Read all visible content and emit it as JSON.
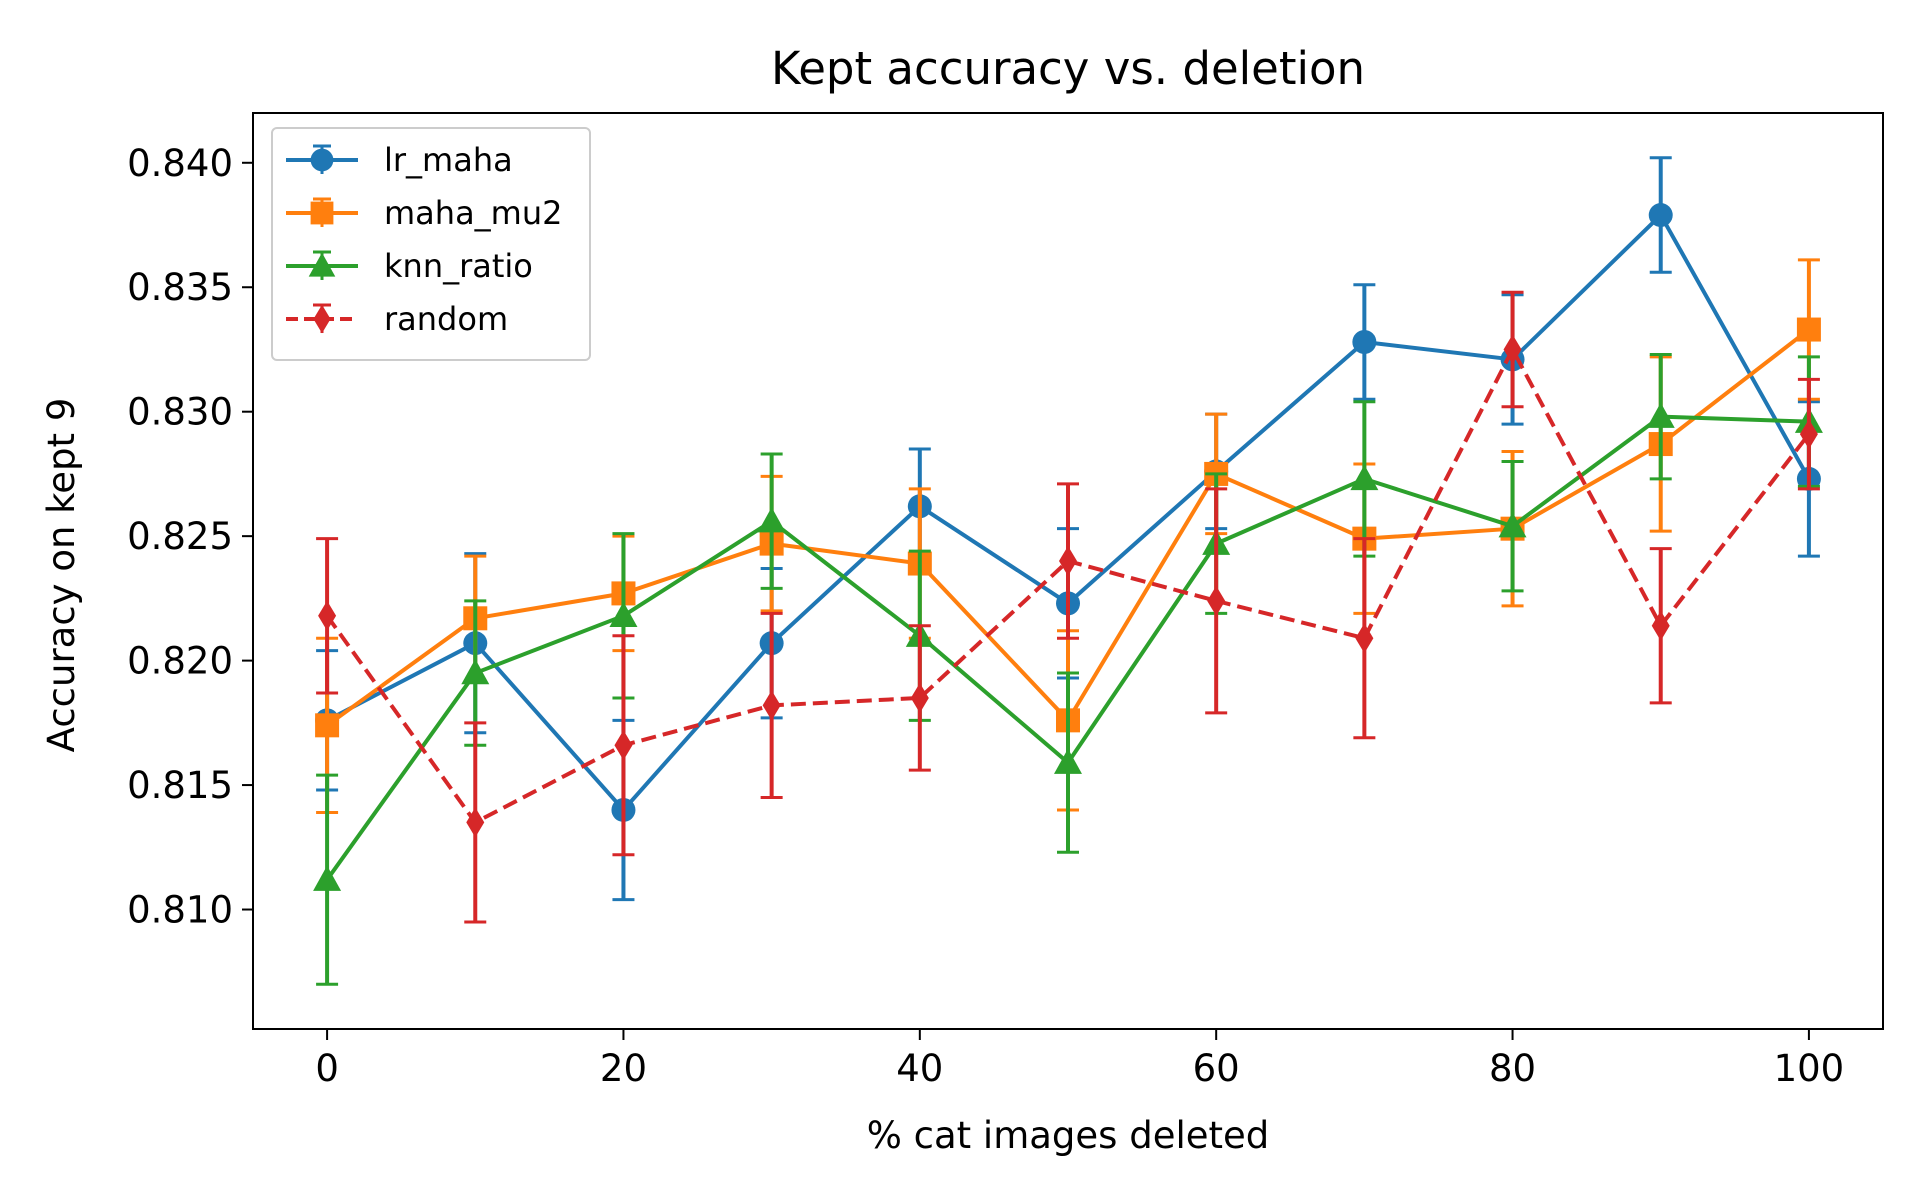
{
  "chart_data": {
    "type": "line",
    "title": "Kept accuracy vs. deletion",
    "xlabel": "% cat images deleted",
    "ylabel": "Accuracy on kept 9",
    "x": [
      0,
      10,
      20,
      30,
      40,
      50,
      60,
      70,
      80,
      90,
      100
    ],
    "xlim": [
      -5,
      105
    ],
    "ylim": [
      0.8052,
      0.842
    ],
    "xticks": [
      0,
      20,
      40,
      60,
      80,
      100
    ],
    "xtick_labels": [
      "0",
      "20",
      "40",
      "60",
      "80",
      "100"
    ],
    "yticks": [
      0.81,
      0.815,
      0.82,
      0.825,
      0.83,
      0.835,
      0.84
    ],
    "ytick_labels": [
      "0.810",
      "0.815",
      "0.820",
      "0.825",
      "0.830",
      "0.835",
      "0.840"
    ],
    "grid": false,
    "legend_position": "top-left",
    "series": [
      {
        "name": "lr_maha",
        "color": "#1f77b4",
        "marker": "circle",
        "linestyle": "solid",
        "values": [
          0.8176,
          0.8207,
          0.814,
          0.8207,
          0.8262,
          0.8223,
          0.8276,
          0.8328,
          0.8321,
          0.8379,
          0.8273
        ],
        "errors": [
          0.0028,
          0.0036,
          0.0036,
          0.003,
          0.0023,
          0.003,
          0.0023,
          0.0023,
          0.0026,
          0.0023,
          0.0031
        ]
      },
      {
        "name": "maha_mu2",
        "color": "#ff7f0e",
        "marker": "square",
        "linestyle": "solid",
        "values": [
          0.8174,
          0.8217,
          0.8227,
          0.8247,
          0.8239,
          0.8176,
          0.8275,
          0.8249,
          0.8253,
          0.8287,
          0.8333
        ],
        "errors": [
          0.0035,
          0.0025,
          0.0023,
          0.0027,
          0.003,
          0.0036,
          0.0024,
          0.003,
          0.0031,
          0.0035,
          0.0028
        ]
      },
      {
        "name": "knn_ratio",
        "color": "#2ca02c",
        "marker": "triangle",
        "linestyle": "solid",
        "values": [
          0.8112,
          0.8195,
          0.8218,
          0.8256,
          0.821,
          0.8159,
          0.8247,
          0.8273,
          0.8254,
          0.8298,
          0.8296
        ],
        "errors": [
          0.0042,
          0.0029,
          0.0033,
          0.0027,
          0.0034,
          0.0036,
          0.0028,
          0.0031,
          0.0026,
          0.0025,
          0.0026
        ]
      },
      {
        "name": "random",
        "color": "#d62728",
        "marker": "diamond",
        "linestyle": "dashed",
        "values": [
          0.8218,
          0.8135,
          0.8166,
          0.8182,
          0.8185,
          0.824,
          0.8224,
          0.8209,
          0.8325,
          0.8214,
          0.8291
        ],
        "errors": [
          0.0031,
          0.004,
          0.0044,
          0.0037,
          0.0029,
          0.0031,
          0.0045,
          0.004,
          0.0023,
          0.0031,
          0.0022
        ]
      }
    ]
  }
}
